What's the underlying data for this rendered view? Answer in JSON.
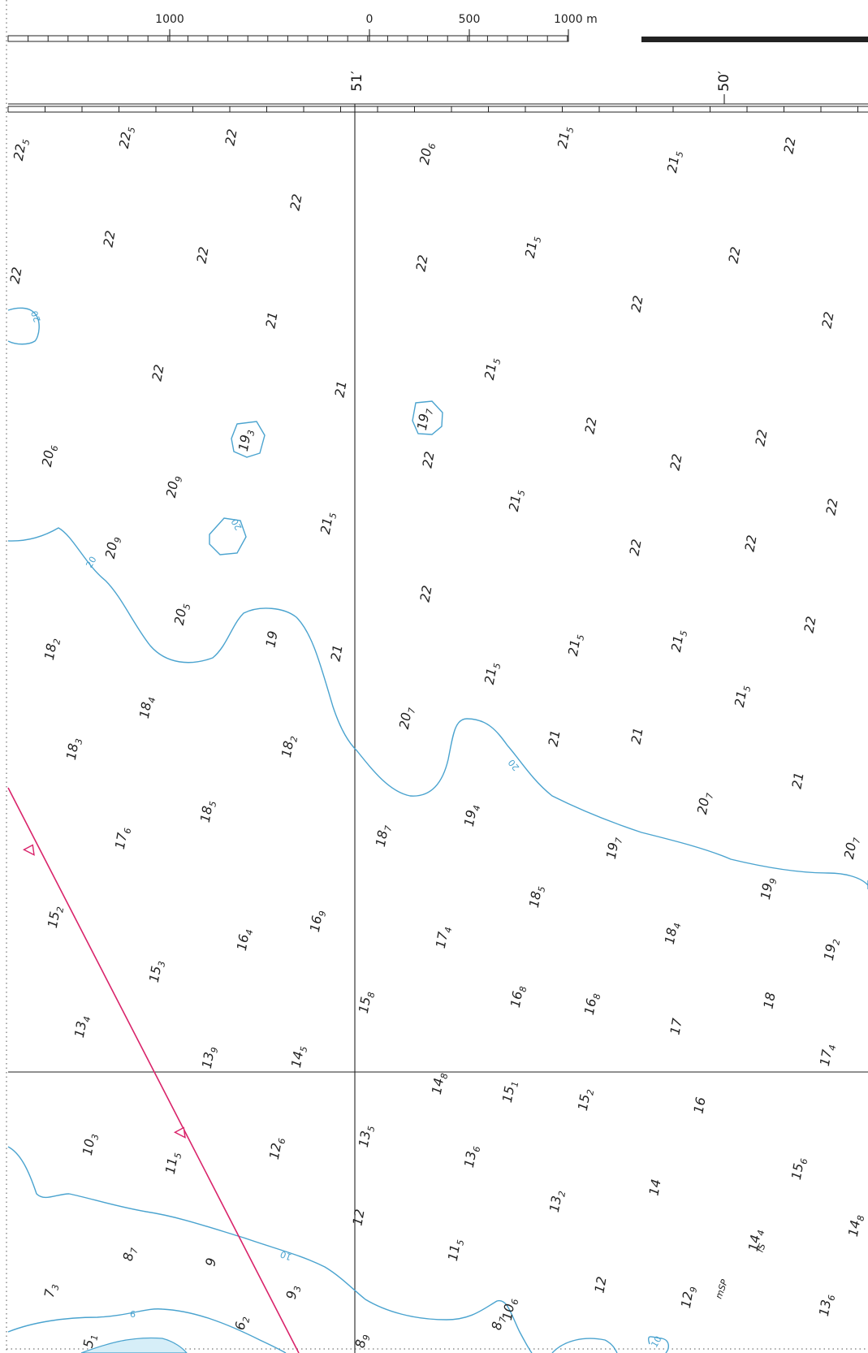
{
  "scale_bar": {
    "ticks": [
      "1000",
      "0",
      "500",
      "1000 m"
    ]
  },
  "longitudes": [
    "51′",
    "50′"
  ],
  "soundings": [
    {
      "main": "22",
      "sub": "5"
    },
    {
      "main": "22",
      "sub": "5"
    },
    {
      "main": "22",
      "sub": ""
    },
    {
      "main": "20",
      "sub": "6"
    },
    {
      "main": "21",
      "sub": "5"
    },
    {
      "main": "21",
      "sub": "5"
    },
    {
      "main": "22",
      "sub": ""
    },
    {
      "main": "22",
      "sub": ""
    },
    {
      "main": "22",
      "sub": ""
    },
    {
      "main": "22",
      "sub": ""
    },
    {
      "main": "22",
      "sub": ""
    },
    {
      "main": "22",
      "sub": ""
    },
    {
      "main": "21",
      "sub": "5"
    },
    {
      "main": "22",
      "sub": ""
    },
    {
      "main": "21",
      "sub": ""
    },
    {
      "main": "22",
      "sub": ""
    },
    {
      "main": "22",
      "sub": ""
    },
    {
      "main": "22",
      "sub": ""
    },
    {
      "main": "21",
      "sub": ""
    },
    {
      "main": "21",
      "sub": "5"
    },
    {
      "main": "19",
      "sub": "3"
    },
    {
      "main": "19",
      "sub": "7"
    },
    {
      "main": "22",
      "sub": ""
    },
    {
      "main": "20",
      "sub": "6"
    },
    {
      "main": "22",
      "sub": ""
    },
    {
      "main": "22",
      "sub": ""
    },
    {
      "main": "22",
      "sub": ""
    },
    {
      "main": "20",
      "sub": "9"
    },
    {
      "main": "21",
      "sub": "5"
    },
    {
      "main": "22",
      "sub": ""
    },
    {
      "main": "20",
      "sub": "9"
    },
    {
      "main": "21",
      "sub": "5"
    },
    {
      "main": "22",
      "sub": ""
    },
    {
      "main": "22",
      "sub": ""
    },
    {
      "main": "22",
      "sub": ""
    },
    {
      "main": "20",
      "sub": "5"
    },
    {
      "main": "19",
      "sub": ""
    },
    {
      "main": "18",
      "sub": "2"
    },
    {
      "main": "21",
      "sub": ""
    },
    {
      "main": "21",
      "sub": "5"
    },
    {
      "main": "21",
      "sub": "5"
    },
    {
      "main": "21",
      "sub": "5"
    },
    {
      "main": "22",
      "sub": ""
    },
    {
      "main": "18",
      "sub": "4"
    },
    {
      "main": "20",
      "sub": "7"
    },
    {
      "main": "21",
      "sub": "5"
    },
    {
      "main": "18",
      "sub": "3"
    },
    {
      "main": "18",
      "sub": "2"
    },
    {
      "main": "21",
      "sub": ""
    },
    {
      "main": "21",
      "sub": ""
    },
    {
      "main": "21",
      "sub": ""
    },
    {
      "main": "18",
      "sub": "5"
    },
    {
      "main": "17",
      "sub": "6"
    },
    {
      "main": "18",
      "sub": "7"
    },
    {
      "main": "19",
      "sub": "4"
    },
    {
      "main": "20",
      "sub": "7"
    },
    {
      "main": "19",
      "sub": "7"
    },
    {
      "main": "20",
      "sub": "7"
    },
    {
      "main": "15",
      "sub": "2"
    },
    {
      "main": "16",
      "sub": "9"
    },
    {
      "main": "18",
      "sub": "5"
    },
    {
      "main": "19",
      "sub": "9"
    },
    {
      "main": "16",
      "sub": "4"
    },
    {
      "main": "17",
      "sub": "4"
    },
    {
      "main": "18",
      "sub": "4"
    },
    {
      "main": "19",
      "sub": "2"
    },
    {
      "main": "15",
      "sub": "3"
    },
    {
      "main": "15",
      "sub": "8"
    },
    {
      "main": "16",
      "sub": "8"
    },
    {
      "main": "16",
      "sub": "8"
    },
    {
      "main": "18",
      "sub": ""
    },
    {
      "main": "13",
      "sub": "4"
    },
    {
      "main": "17",
      "sub": ""
    },
    {
      "main": "13",
      "sub": "9"
    },
    {
      "main": "14",
      "sub": "5"
    },
    {
      "main": "17",
      "sub": "4"
    },
    {
      "main": "14",
      "sub": "8"
    },
    {
      "main": "15",
      "sub": "1"
    },
    {
      "main": "15",
      "sub": "2"
    },
    {
      "main": "16",
      "sub": ""
    },
    {
      "main": "10",
      "sub": "3"
    },
    {
      "main": "11",
      "sub": "5"
    },
    {
      "main": "12",
      "sub": "6"
    },
    {
      "main": "13",
      "sub": "5"
    },
    {
      "main": "13",
      "sub": "6"
    },
    {
      "main": "15",
      "sub": "6"
    },
    {
      "main": "14",
      "sub": ""
    },
    {
      "main": "13",
      "sub": "2"
    },
    {
      "main": "12",
      "sub": ""
    },
    {
      "main": "14",
      "sub": "8"
    },
    {
      "main": "8",
      "sub": "7"
    },
    {
      "main": "9",
      "sub": ""
    },
    {
      "main": "11",
      "sub": "5"
    },
    {
      "main": "14",
      "sub": "4"
    },
    {
      "main": "7",
      "sub": "3"
    },
    {
      "main": "9",
      "sub": "3"
    },
    {
      "main": "10",
      "sub": "6"
    },
    {
      "main": "12",
      "sub": ""
    },
    {
      "main": "12",
      "sub": "9"
    },
    {
      "main": "13",
      "sub": "6"
    },
    {
      "main": "6",
      "sub": "2"
    },
    {
      "main": "8",
      "sub": "7"
    },
    {
      "main": "5",
      "sub": "1"
    },
    {
      "main": "8",
      "sub": "9"
    }
  ],
  "contour_labels": [
    "20",
    "20",
    "20",
    "20",
    "10",
    "6",
    "10"
  ],
  "seabed_notes": [
    "fS",
    "mSP"
  ],
  "colors": {
    "contour": "#4aa3cf",
    "route": "#d9236a",
    "grid": "#222222"
  }
}
